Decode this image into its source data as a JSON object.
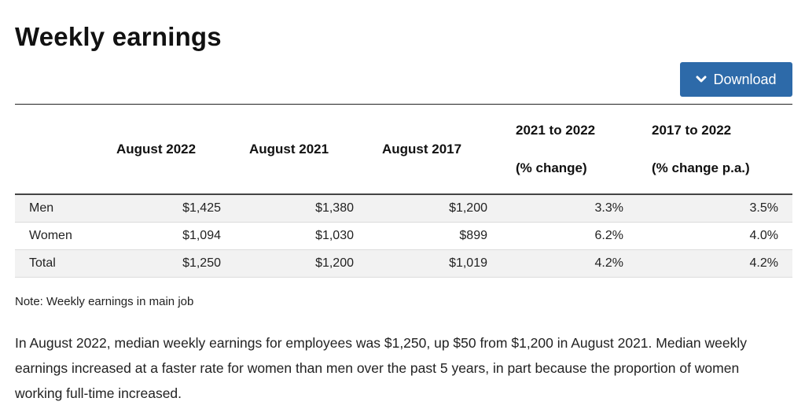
{
  "page": {
    "title": "Weekly earnings",
    "download_label": "Download",
    "accent_color": "#2d6aa9"
  },
  "table": {
    "headers": [
      {
        "line1": "",
        "line2": ""
      },
      {
        "line1": "August 2022",
        "line2": ""
      },
      {
        "line1": "August 2021",
        "line2": ""
      },
      {
        "line1": "August 2017",
        "line2": ""
      },
      {
        "line1": "2021 to 2022",
        "line2": "(% change)"
      },
      {
        "line1": "2017 to 2022",
        "line2": "(% change p.a.)"
      }
    ],
    "rows": [
      {
        "label": "Men",
        "cells": [
          "$1,425",
          "$1,380",
          "$1,200",
          "3.3%",
          "3.5%"
        ]
      },
      {
        "label": "Women",
        "cells": [
          "$1,094",
          "$1,030",
          "$899",
          "6.2%",
          "4.0%"
        ]
      },
      {
        "label": "Total",
        "cells": [
          "$1,250",
          "$1,200",
          "$1,019",
          "4.2%",
          "4.2%"
        ]
      }
    ]
  },
  "note": "Note: Weekly earnings in main job",
  "paragraph": "In August 2022, median weekly earnings for employees was $1,250, up $50 from $1,200 in August 2021. Median weekly earnings increased at a faster rate for women than men over the past 5 years, in part because the proportion of women working full-time increased.",
  "icons": {
    "download": "chevron-down-icon"
  }
}
